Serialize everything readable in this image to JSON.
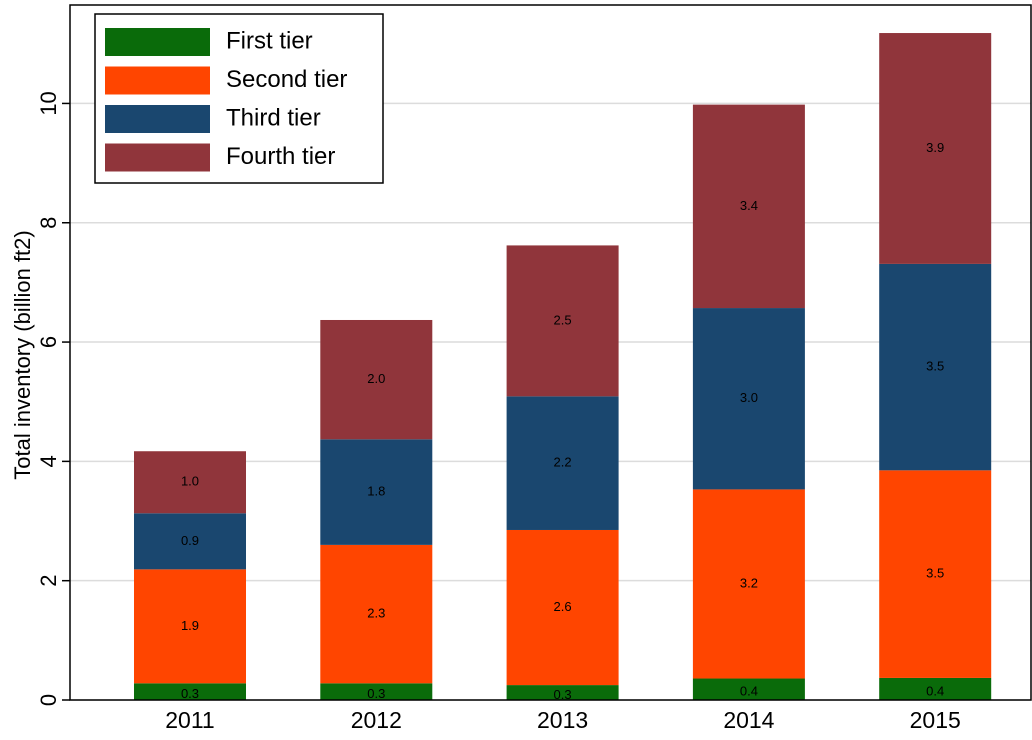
{
  "chart_data": {
    "type": "stacked_bar",
    "y_label": "Total inventory (billion ft2)",
    "categories": [
      "2011",
      "2012",
      "2013",
      "2014",
      "2015"
    ],
    "series": [
      {
        "name": "First tier",
        "color": "#0a6b0a",
        "values": [
          0.28,
          0.28,
          0.25,
          0.36,
          0.37
        ],
        "value_labels": [
          "0.3",
          "0.3",
          "0.3",
          "0.4",
          "0.4"
        ]
      },
      {
        "name": "Second tier",
        "color": "#ff4500",
        "values": [
          1.91,
          2.32,
          2.6,
          3.17,
          3.48
        ],
        "value_labels": [
          "1.9",
          "2.3",
          "2.6",
          "3.2",
          "3.5"
        ]
      },
      {
        "name": "Third tier",
        "color": "#1a476f",
        "values": [
          0.94,
          1.77,
          2.24,
          3.04,
          3.46
        ],
        "value_labels": [
          "0.9",
          "1.8",
          "2.2",
          "3.0",
          "3.5"
        ]
      },
      {
        "name": "Fourth tier",
        "color": "#90353b",
        "values": [
          1.04,
          2.0,
          2.53,
          3.41,
          3.87
        ],
        "value_labels": [
          "1.0",
          "2.0",
          "2.5",
          "3.4",
          "3.9"
        ]
      }
    ],
    "ylim": [
      0,
      11.65
    ],
    "yticks": [
      0,
      2,
      4,
      6,
      8,
      10
    ],
    "grid": true,
    "legend": "top-left"
  }
}
